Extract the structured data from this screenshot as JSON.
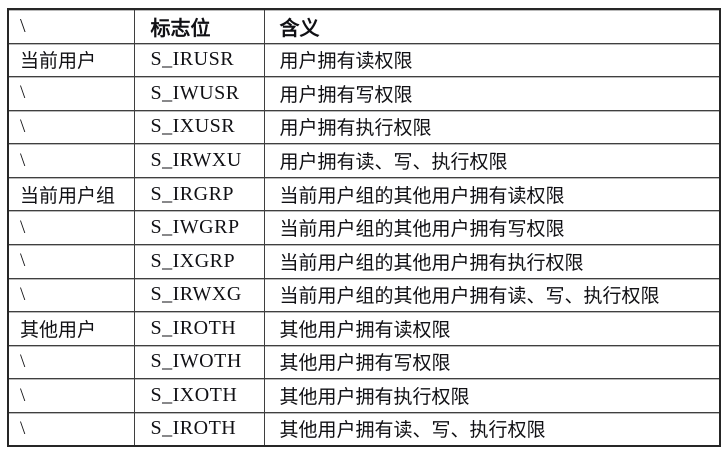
{
  "colors": {
    "background": "#ffffff",
    "text": "#101014",
    "border_outer": "#262626",
    "border_inner": "#3f3f3f"
  },
  "table": {
    "columns": [
      {
        "label": "\\"
      },
      {
        "label": "标志位"
      },
      {
        "label": "含义"
      }
    ],
    "rows": [
      {
        "owner": "当前用户",
        "flag": "S_IRUSR",
        "meaning": "用户拥有读权限"
      },
      {
        "owner": "\\",
        "flag": "S_IWUSR",
        "meaning": "用户拥有写权限"
      },
      {
        "owner": "\\",
        "flag": "S_IXUSR",
        "meaning": "用户拥有执行权限"
      },
      {
        "owner": "\\",
        "flag": "S_IRWXU",
        "meaning": "用户拥有读、写、执行权限"
      },
      {
        "owner": "当前用户组",
        "flag": "S_IRGRP",
        "meaning": "当前用户组的其他用户拥有读权限"
      },
      {
        "owner": "\\",
        "flag": "S_IWGRP",
        "meaning": "当前用户组的其他用户拥有写权限"
      },
      {
        "owner": "\\",
        "flag": "S_IXGRP",
        "meaning": "当前用户组的其他用户拥有执行权限"
      },
      {
        "owner": "\\",
        "flag": "S_IRWXG",
        "meaning": "当前用户组的其他用户拥有读、写、执行权限"
      },
      {
        "owner": "其他用户",
        "flag": "S_IROTH",
        "meaning": "其他用户拥有读权限"
      },
      {
        "owner": "\\",
        "flag": "S_IWOTH",
        "meaning": "其他用户拥有写权限"
      },
      {
        "owner": "\\",
        "flag": "S_IXOTH",
        "meaning": "其他用户拥有执行权限"
      },
      {
        "owner": "\\",
        "flag": "S_IROTH",
        "meaning": "其他用户拥有读、写、执行权限"
      }
    ]
  }
}
